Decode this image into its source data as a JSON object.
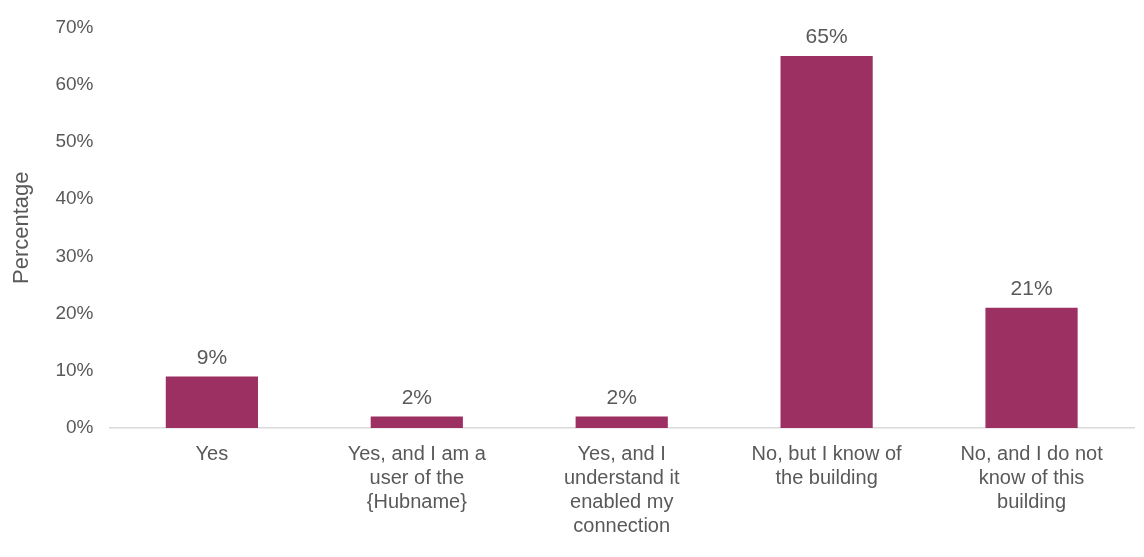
{
  "chart_data": {
    "type": "bar",
    "ylabel": "Percentage",
    "categories": [
      "Yes",
      "Yes, and I am a user of the {Hubname}",
      "Yes, and I understand it enabled my connection",
      "No, but I know of the building",
      "No, and I do not know of this building"
    ],
    "values": [
      9,
      2,
      2,
      65,
      21
    ],
    "value_labels": [
      "9%",
      "2%",
      "2%",
      "65%",
      "21%"
    ],
    "color": "#9c3063",
    "ylim": [
      0,
      70
    ],
    "yticks": [
      {
        "value": 0,
        "label": "0%"
      },
      {
        "value": 10,
        "label": "10%"
      },
      {
        "value": 20,
        "label": "20%"
      },
      {
        "value": 30,
        "label": "30%"
      },
      {
        "value": 40,
        "label": "40%"
      },
      {
        "value": 50,
        "label": "50%"
      },
      {
        "value": 60,
        "label": "60%"
      },
      {
        "value": 70,
        "label": "70%"
      }
    ],
    "grid": false,
    "legend": false
  }
}
